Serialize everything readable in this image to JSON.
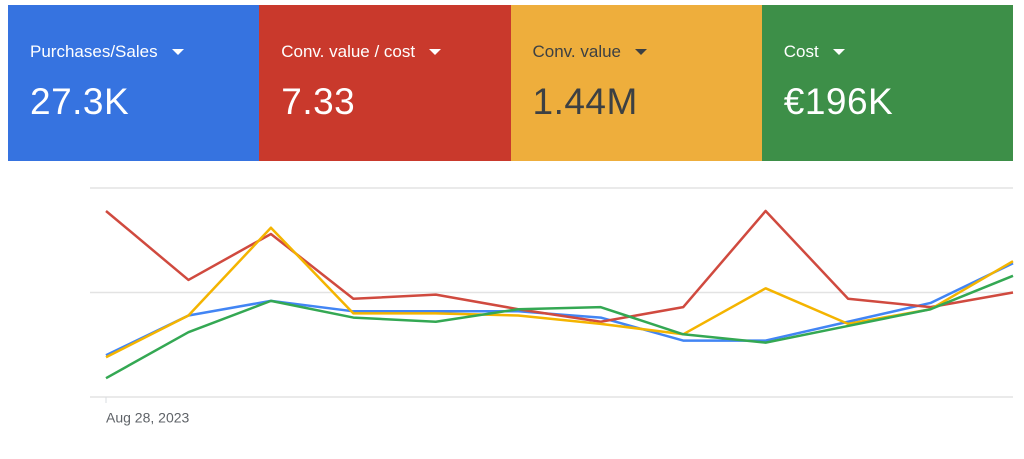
{
  "chart_data": {
    "type": "line",
    "categories": [
      "Aug 28, 2023",
      null,
      null,
      null,
      null,
      null,
      null,
      null,
      null,
      null,
      null,
      null
    ],
    "series": [
      {
        "name": "Purchases/Sales",
        "value_label": "27.3K",
        "card_color": "#3673e0",
        "color": "#4285f4",
        "values": [
          20,
          39,
          46,
          41,
          41,
          41,
          38,
          27,
          27,
          36,
          45,
          64
        ]
      },
      {
        "name": "Conv. value / cost",
        "value_label": "7.33",
        "card_color": "#c9392c",
        "color": "#d04a3f",
        "values": [
          89,
          56,
          78,
          47,
          49,
          42,
          36,
          43,
          89,
          47,
          43,
          50
        ]
      },
      {
        "name": "Conv. value",
        "value_label": "1.44M",
        "card_color": "#eeae3c",
        "color": "#f4b400",
        "values": [
          19,
          39,
          81,
          40,
          40,
          39,
          35,
          30,
          52,
          35,
          42,
          65
        ]
      },
      {
        "name": "Cost",
        "value_label": "€196K",
        "card_color": "#3d8f48",
        "color": "#34a853",
        "values": [
          9,
          31,
          46,
          38,
          36,
          42,
          43,
          30,
          26,
          34,
          42,
          58
        ]
      }
    ],
    "ylim": [
      0,
      100
    ],
    "yticks": [
      0,
      50,
      100
    ],
    "grid": true
  }
}
